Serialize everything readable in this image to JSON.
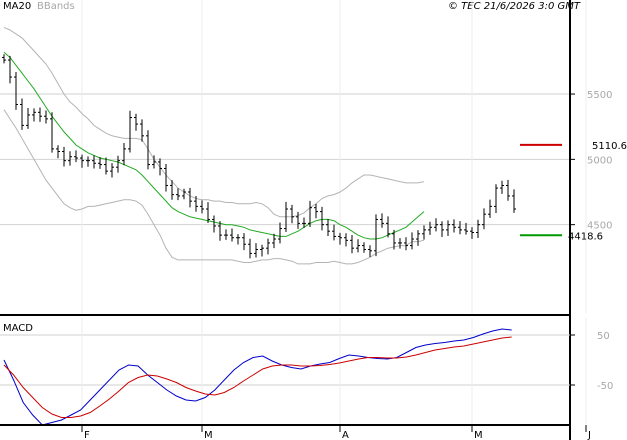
{
  "header": {
    "ma_label": "MA20",
    "bb_label": "BBands",
    "copyright": "© TEC 21/6/2026 3:0 GMT"
  },
  "colors": {
    "price": "#000000",
    "ma20": "#22aa22",
    "bbands": "#b4b4b4",
    "resistance": "#cc0000",
    "support": "#009900",
    "macd_line": "#0000cc",
    "signal_line": "#cc0000",
    "grid": "#d2d2d2",
    "axis": "#000000"
  },
  "macd_label": "MACD",
  "chart_data": [
    {
      "type": "ohlc",
      "indicators": [
        "MA20",
        "BBands"
      ],
      "y_ticks": [
        {
          "value": 5500,
          "label": "5500"
        },
        {
          "value": 5000,
          "label": "5000"
        },
        {
          "value": 4500,
          "label": "4500"
        }
      ],
      "ylim": [
        3885,
        6105
      ],
      "x_month_ticks": [
        {
          "index": 13,
          "label": "F"
        },
        {
          "index": 33,
          "label": "M"
        },
        {
          "index": 56,
          "label": "A"
        },
        {
          "index": 78,
          "label": "M"
        },
        {
          "index": 97,
          "label": "J"
        }
      ],
      "reference_levels": [
        {
          "name": "resistance",
          "value": 5110.6,
          "label": "5110.6"
        },
        {
          "name": "support",
          "value": 4418.6,
          "label": "4418.6"
        }
      ],
      "closes": [
        5760,
        5630,
        5420,
        5260,
        5340,
        5360,
        5330,
        5310,
        5080,
        5060,
        4990,
        5020,
        5010,
        4990,
        4990,
        4970,
        4960,
        4910,
        4940,
        4990,
        5080,
        5320,
        5270,
        5180,
        4960,
        4980,
        4930,
        4800,
        4730,
        4720,
        4750,
        4680,
        4640,
        4620,
        4540,
        4490,
        4420,
        4420,
        4400,
        4400,
        4350,
        4280,
        4310,
        4320,
        4360,
        4390,
        4470,
        4620,
        4560,
        4510,
        4510,
        4630,
        4600,
        4500,
        4450,
        4410,
        4400,
        4380,
        4320,
        4340,
        4310,
        4300,
        4540,
        4510,
        4430,
        4360,
        4360,
        4340,
        4390,
        4430,
        4460,
        4480,
        4500,
        4460,
        4500,
        4480,
        4460,
        4450,
        4440,
        4500,
        4580,
        4640,
        4780,
        4800,
        4720,
        4620
      ],
      "ma20": [
        5820,
        5780,
        5720,
        5660,
        5600,
        5540,
        5470,
        5400,
        5330,
        5270,
        5210,
        5160,
        5110,
        5080,
        5050,
        5030,
        5010,
        5000,
        4990,
        4980,
        4960,
        4940,
        4920,
        4880,
        4830,
        4780,
        4730,
        4680,
        4630,
        4600,
        4580,
        4560,
        4550,
        4540,
        4530,
        4520,
        4510,
        4500,
        4500,
        4490,
        4480,
        4460,
        4450,
        4440,
        4430,
        4420,
        4410,
        4410,
        4430,
        4450,
        4480,
        4510,
        4530,
        4540,
        4540,
        4530,
        4500,
        4480,
        4450,
        4420,
        4400,
        4390,
        4390,
        4400,
        4420,
        4440,
        4460,
        4480,
        4520,
        4560,
        4600
      ],
      "bb_upper": [
        6010,
        5990,
        5960,
        5930,
        5880,
        5830,
        5780,
        5730,
        5660,
        5580,
        5500,
        5440,
        5400,
        5350,
        5310,
        5260,
        5230,
        5200,
        5180,
        5170,
        5160,
        5160,
        5160,
        5150,
        5080,
        5000,
        4940,
        4880,
        4830,
        4780,
        4750,
        4720,
        4700,
        4690,
        4690,
        4680,
        4680,
        4670,
        4670,
        4660,
        4660,
        4660,
        4670,
        4660,
        4630,
        4580,
        4560,
        4560,
        4560,
        4570,
        4590,
        4630,
        4660,
        4700,
        4720,
        4730,
        4750,
        4780,
        4820,
        4850,
        4880,
        4880,
        4870,
        4860,
        4850,
        4840,
        4830,
        4820,
        4820,
        4820,
        4830
      ],
      "bb_lower": [
        5380,
        5310,
        5240,
        5160,
        5080,
        5000,
        4920,
        4840,
        4780,
        4720,
        4660,
        4630,
        4610,
        4620,
        4640,
        4640,
        4650,
        4660,
        4670,
        4680,
        4690,
        4690,
        4680,
        4650,
        4580,
        4500,
        4420,
        4320,
        4250,
        4230,
        4230,
        4230,
        4230,
        4230,
        4230,
        4230,
        4230,
        4230,
        4230,
        4220,
        4210,
        4210,
        4220,
        4230,
        4230,
        4240,
        4240,
        4230,
        4220,
        4200,
        4200,
        4200,
        4210,
        4210,
        4210,
        4220,
        4210,
        4200,
        4200,
        4210,
        4230,
        4250,
        4280,
        4300,
        4320,
        4330,
        4340,
        4340,
        4370,
        4370,
        4380
      ]
    },
    {
      "type": "line",
      "title": "MACD",
      "y_ticks": [
        {
          "value": 50,
          "label": "50"
        },
        {
          "value": -50,
          "label": "-50"
        }
      ],
      "ylim": [
        -120,
        70
      ],
      "series": [
        {
          "values": [
            0,
            -40,
            -85,
            -110,
            -130,
            -125,
            -120,
            -110,
            -100,
            -80,
            -60,
            -40,
            -20,
            -10,
            -12,
            -30,
            -45,
            -60,
            -72,
            -80,
            -82,
            -75,
            -60,
            -40,
            -20,
            -5,
            5,
            8,
            -2,
            -10,
            -15,
            -18,
            -12,
            -8,
            -5,
            3,
            10,
            8,
            5,
            3,
            2,
            5,
            15,
            25,
            30,
            33,
            35,
            38,
            40,
            45,
            52,
            58,
            62,
            60
          ]
        },
        {
          "values": [
            -10,
            -30,
            -55,
            -75,
            -95,
            -108,
            -115,
            -115,
            -112,
            -105,
            -92,
            -78,
            -62,
            -45,
            -35,
            -30,
            -32,
            -38,
            -45,
            -55,
            -62,
            -68,
            -70,
            -65,
            -55,
            -42,
            -30,
            -18,
            -12,
            -10,
            -10,
            -12,
            -12,
            -11,
            -9,
            -6,
            -2,
            2,
            5,
            5,
            4,
            4,
            6,
            10,
            15,
            20,
            23,
            26,
            28,
            32,
            36,
            40,
            44,
            46
          ]
        }
      ]
    }
  ]
}
